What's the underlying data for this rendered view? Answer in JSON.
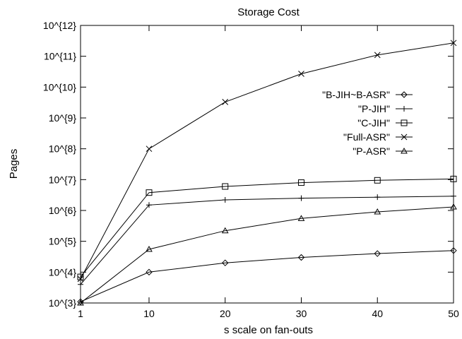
{
  "chart_data": {
    "type": "line",
    "title": "Storage Cost",
    "xlabel": "s scale on fan-outs",
    "ylabel": "Pages",
    "x": [
      1,
      10,
      20,
      30,
      40,
      50
    ],
    "xticks": [
      1,
      10,
      20,
      30,
      40,
      50
    ],
    "xlim": [
      1,
      50
    ],
    "yscale": "log",
    "ylim": [
      1000,
      1000000000000
    ],
    "yticks": [
      {
        "value": 1000,
        "label": "10^{3}"
      },
      {
        "value": 10000,
        "label": "10^{4}"
      },
      {
        "value": 100000,
        "label": "10^{5}"
      },
      {
        "value": 1000000,
        "label": "10^{6}"
      },
      {
        "value": 10000000,
        "label": "10^{7}"
      },
      {
        "value": 100000000,
        "label": "10^{8}"
      },
      {
        "value": 1000000000,
        "label": "10^{9}"
      },
      {
        "value": 10000000000,
        "label": "10^{10}"
      },
      {
        "value": 100000000000,
        "label": "10^{11}"
      },
      {
        "value": 1000000000000,
        "label": "10^{12}"
      }
    ],
    "grid": false,
    "legend_position": "right",
    "series": [
      {
        "name": "\"B-JIH~B-ASR\"",
        "marker": "diamond",
        "values": [
          1100,
          10000,
          20000,
          30000,
          40000,
          50000
        ]
      },
      {
        "name": "\"P-JIH\"",
        "marker": "plus",
        "values": [
          4000,
          1500000,
          2200000,
          2500000,
          2700000,
          2900000
        ]
      },
      {
        "name": "\"C-JIH\"",
        "marker": "square",
        "values": [
          7000,
          3800000,
          6000000,
          8000000,
          9500000,
          10500000
        ]
      },
      {
        "name": "\"Full-ASR\"",
        "marker": "cross",
        "values": [
          6000,
          100000000,
          3300000000,
          27000000000,
          110000000000,
          270000000000
        ]
      },
      {
        "name": "\"P-ASR\"",
        "marker": "triangle",
        "values": [
          1000,
          55000,
          220000,
          550000,
          900000,
          1300000
        ]
      }
    ]
  }
}
